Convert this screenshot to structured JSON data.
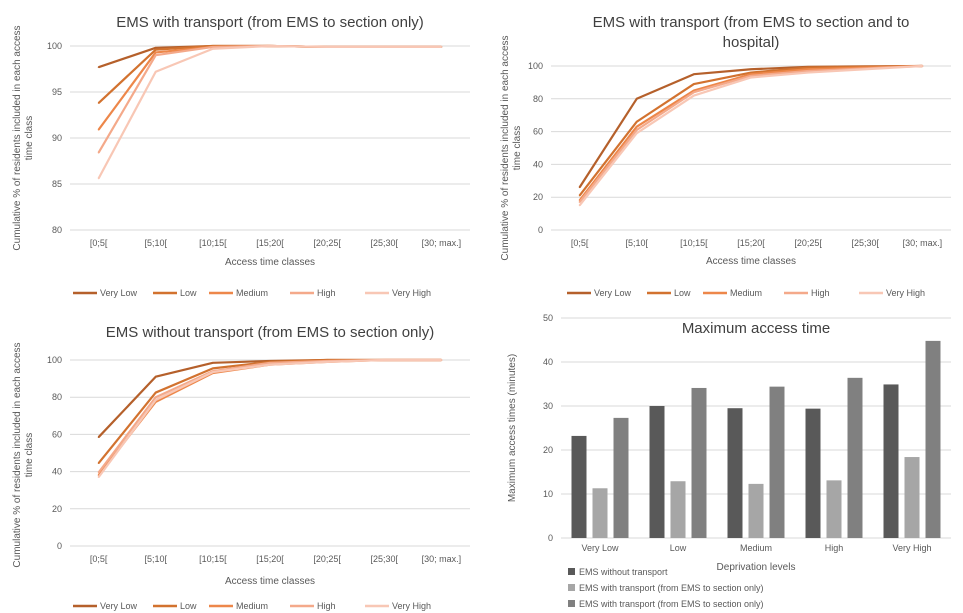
{
  "chart_data": [
    {
      "type": "line",
      "title": "EMS with transport (from EMS to section only)",
      "title_lines": [
        "EMS with transport (from EMS to section only)"
      ],
      "xlabel": "Access time classes",
      "ylabel_lines": [
        "Cumulative % of residents included in each access",
        "time class"
      ],
      "categories": [
        "[0;5[",
        "[5;10[",
        "[10;15[",
        "[15;20[",
        "[20;25[",
        "[25;30[",
        "[30; max.]"
      ],
      "ylim": [
        80,
        100
      ],
      "yticks": [
        80,
        85,
        90,
        95,
        100
      ],
      "grid": true,
      "legend_placement": "bottom",
      "series": [
        {
          "name": "Very Low",
          "color": "#b5602b",
          "values": [
            97.7,
            99.8,
            100,
            100,
            99.9,
            99.9,
            99.9
          ]
        },
        {
          "name": "Low",
          "color": "#d2722f",
          "values": [
            93.8,
            99.6,
            100,
            100,
            99.9,
            99.9,
            99.9
          ]
        },
        {
          "name": "Medium",
          "color": "#ed874a",
          "values": [
            90.9,
            99.3,
            99.9,
            100,
            99.9,
            99.9,
            99.9
          ]
        },
        {
          "name": "High",
          "color": "#f4a98a",
          "values": [
            88.4,
            99.0,
            99.9,
            100,
            99.9,
            99.9,
            99.9
          ]
        },
        {
          "name": "Very High",
          "color": "#f8c7b5",
          "values": [
            85.6,
            97.2,
            99.7,
            100,
            99.9,
            99.9,
            99.9
          ]
        }
      ]
    },
    {
      "type": "line",
      "title": "EMS with transport (from EMS to section and to hospital)",
      "title_lines": [
        "EMS with transport (from EMS to section and to",
        "hospital)"
      ],
      "xlabel": "Access time classes",
      "ylabel_lines": [
        "Cumulative % of residents included in each access",
        "time class"
      ],
      "categories": [
        "[0;5[",
        "[5;10[",
        "[10;15[",
        "[15;20[",
        "[20;25[",
        "[25;30[",
        "[30; max.]"
      ],
      "ylim": [
        0,
        100
      ],
      "yticks": [
        0,
        20,
        40,
        60,
        80,
        100
      ],
      "grid": true,
      "legend_placement": "bottom",
      "series": [
        {
          "name": "Very Low",
          "color": "#b5602b",
          "values": [
            26,
            80,
            95,
            98,
            99.5,
            99.8,
            100
          ]
        },
        {
          "name": "Low",
          "color": "#d2722f",
          "values": [
            21,
            66,
            89,
            96,
            99,
            99.5,
            100
          ]
        },
        {
          "name": "Medium",
          "color": "#ed874a",
          "values": [
            18,
            63,
            85,
            95,
            98,
            99,
            100
          ]
        },
        {
          "name": "High",
          "color": "#f4a98a",
          "values": [
            17,
            61,
            84,
            94,
            97,
            98.5,
            100
          ]
        },
        {
          "name": "Very High",
          "color": "#f8c7b5",
          "values": [
            15,
            59,
            82,
            93,
            96,
            98,
            100
          ]
        }
      ]
    },
    {
      "type": "line",
      "title": "EMS without transport (from EMS to section only)",
      "title_lines": [
        "EMS without transport (from EMS to section only)"
      ],
      "xlabel": "Access time classes",
      "ylabel_lines": [
        "Cumulative % of residents included in each access",
        "time class"
      ],
      "categories": [
        "[0;5[",
        "[5;10[",
        "[10;15[",
        "[15;20[",
        "[20;25[",
        "[25;30[",
        "[30; max.]"
      ],
      "ylim": [
        0,
        100
      ],
      "yticks": [
        0,
        20,
        40,
        60,
        80,
        100
      ],
      "grid": true,
      "legend_placement": "bottom",
      "series": [
        {
          "name": "Very Low",
          "color": "#b5602b",
          "values": [
            58.5,
            91,
            98.5,
            99.5,
            100,
            100,
            100
          ]
        },
        {
          "name": "Low",
          "color": "#d2722f",
          "values": [
            44.5,
            82.5,
            95.5,
            99,
            100,
            100,
            100
          ]
        },
        {
          "name": "Medium",
          "color": "#ed874a",
          "values": [
            38,
            77.5,
            93,
            97.5,
            99,
            100,
            100
          ]
        },
        {
          "name": "High",
          "color": "#f4a98a",
          "values": [
            39.5,
            80,
            94,
            98.5,
            99.5,
            100,
            100
          ]
        },
        {
          "name": "Very High",
          "color": "#f8c7b5",
          "values": [
            37,
            78.5,
            93.5,
            97.5,
            99,
            100,
            100
          ]
        }
      ]
    },
    {
      "type": "bar",
      "title": "Maximum access time",
      "title_lines": [
        "Maximum access time"
      ],
      "xlabel": "Deprivation levels",
      "ylabel_lines": [
        "Maximum access times (minutes)"
      ],
      "categories": [
        "Very Low",
        "Low",
        "Medium",
        "High",
        "Very High"
      ],
      "ylim": [
        0,
        50
      ],
      "yticks": [
        0,
        10,
        20,
        30,
        40,
        50
      ],
      "grid": true,
      "legend_placement": "bottom",
      "series": [
        {
          "name": "EMS without transport",
          "color": "#595959",
          "values": [
            23.2,
            30,
            29.5,
            29.4,
            34.9
          ]
        },
        {
          "name": "EMS with transport (from EMS to section only)",
          "color": "#a6a6a6",
          "values": [
            11.3,
            12.9,
            12.3,
            13.1,
            18.4
          ]
        },
        {
          "name": "EMS with transport (from EMS to section only)",
          "color": "#808080",
          "values": [
            27.3,
            34.1,
            34.4,
            36.4,
            44.8
          ]
        }
      ]
    }
  ]
}
